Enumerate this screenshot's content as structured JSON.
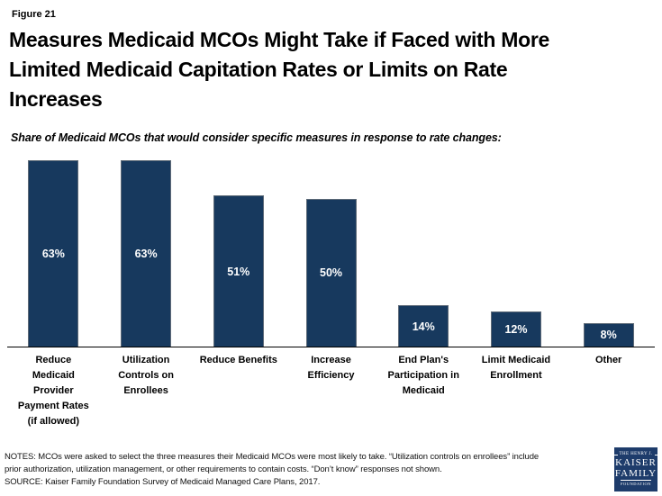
{
  "figure_label": "Figure 21",
  "title": "Measures Medicaid MCOs Might Take if Faced with More\nLimited Medicaid Capitation Rates or Limits on Rate\nIncreases",
  "subtitle": "Share of Medicaid MCOs that would consider specific measures in response to rate changes:",
  "chart_data": {
    "type": "bar",
    "title": "Measures Medicaid MCOs Might Take if Faced with More Limited Medicaid Capitation Rates or Limits on Rate Increases",
    "categories": [
      "Reduce Medicaid Provider Payment Rates (if allowed)",
      "Utilization Controls on Enrollees",
      "Reduce Benefits",
      "Increase Efficiency",
      "End Plan's Participation in Medicaid",
      "Limit Medicaid Enrollment",
      "Other"
    ],
    "category_lines": [
      [
        "Reduce",
        "Medicaid",
        "Provider",
        "Payment Rates",
        "(if allowed)"
      ],
      [
        "Utilization",
        "Controls on",
        "Enrollees"
      ],
      [
        "Reduce Benefits"
      ],
      [
        "Increase",
        "Efficiency"
      ],
      [
        "End Plan's",
        "Participation in",
        "Medicaid"
      ],
      [
        "Limit Medicaid",
        "Enrollment"
      ],
      [
        "Other"
      ]
    ],
    "values": [
      63,
      63,
      51,
      50,
      14,
      12,
      8
    ],
    "value_labels": [
      "63%",
      "63%",
      "51%",
      "50%",
      "14%",
      "12%",
      "8%"
    ],
    "xlabel": "",
    "ylabel": "",
    "ylim": [
      0,
      70
    ],
    "grid": false,
    "legend": false,
    "bar_color": "#17395E",
    "bar_border_color": "#5f6b78",
    "value_label_color": "#ffffff",
    "axis_color": "#000000"
  },
  "footer": {
    "notes": "NOTES: MCOs were asked to select the three measures their Medicaid MCOs were most likely to take. “Utilization controls on enrollees”  include\nprior authorization, utilization management, or other requirements to contain costs.  “Don’t know” responses not shown.",
    "source": "SOURCE: Kaiser Family Foundation Survey of Medicaid Managed Care Plans, 2017.",
    "logo": {
      "line1": "THE HENRY J.",
      "line2": "KAISER",
      "line3": "FAMILY",
      "line4": "FOUNDATION",
      "bg_color": "#1E3C6B"
    }
  }
}
